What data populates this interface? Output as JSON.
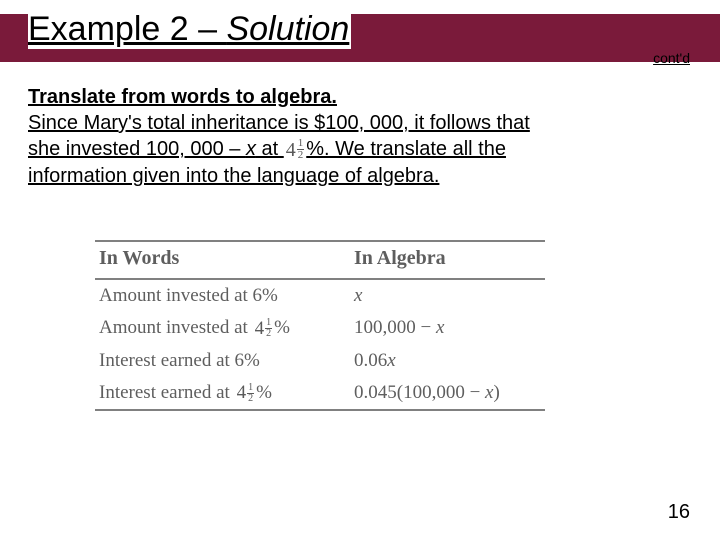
{
  "header": {
    "title_plain_prefix": "Example 2 – ",
    "title_italic": "Solution",
    "contd": "cont'd"
  },
  "body": {
    "heading": "Translate from words to algebra.",
    "line1_a": "Since Mary's total inheritance is $100, 000, it follows that",
    "line2_a": "she invested 100, 000 – ",
    "line2_b": " at ",
    "line2_c": "%. We translate all the",
    "line3": "information given into the language of algebra.",
    "var_x": "x"
  },
  "fraction": {
    "whole": "4",
    "num": "1",
    "den": "2"
  },
  "table": {
    "col_headers": [
      "In Words",
      "In Algebra"
    ],
    "rows": [
      {
        "words_prefix": "Amount invested at 6%",
        "has_fraction": false,
        "words_suffix": "",
        "algebra": "x",
        "algebra_is_italic": true
      },
      {
        "words_prefix": "Amount invested at ",
        "has_fraction": true,
        "words_suffix": "%",
        "algebra_prefix": "100,000 − ",
        "algebra_var": "x"
      },
      {
        "words_prefix": "Interest earned at 6%",
        "has_fraction": false,
        "words_suffix": "",
        "algebra_prefix": "0.06",
        "algebra_var": "x"
      },
      {
        "words_prefix": "Interest earned at  ",
        "has_fraction": true,
        "words_suffix": "%",
        "algebra_prefix": "0.045(100,000 − ",
        "algebra_var": "x",
        "algebra_suffix": ")"
      }
    ]
  },
  "page_number": "16",
  "colors": {
    "header_bar": "#7a1a3a",
    "text": "#000000",
    "table_text": "#5e5e5e",
    "rule": "#808080"
  }
}
